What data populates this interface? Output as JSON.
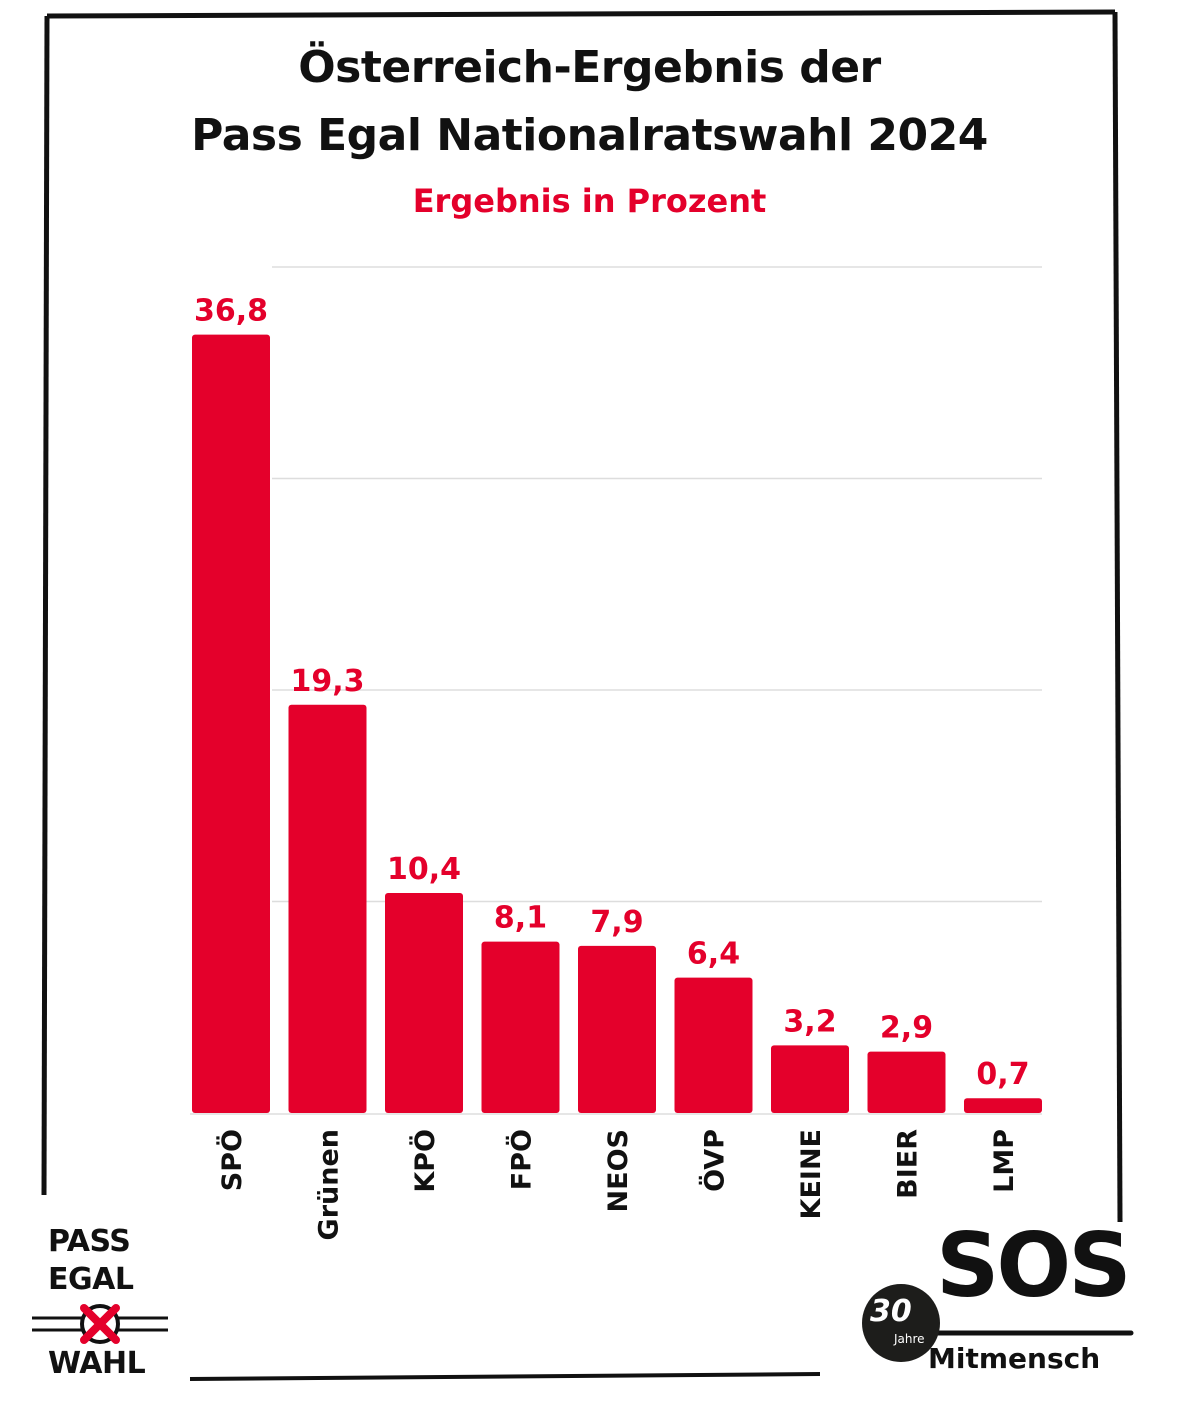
{
  "header": {
    "title_line1": "Österreich-Ergebnis der",
    "title_line2": "Pass Egal Nationalratswahl 2024",
    "subtitle": "Ergebnis in Prozent"
  },
  "colors": {
    "bar": "#e4002b",
    "text": "#111111",
    "grid": "#dddddd"
  },
  "chart_data": {
    "type": "bar",
    "categories": [
      "SPÖ",
      "Grünen",
      "KPÖ",
      "FPÖ",
      "NEOS",
      "ÖVP",
      "KEINE",
      "BIER",
      "LMP"
    ],
    "values": [
      36.8,
      19.3,
      10.4,
      8.1,
      7.9,
      6.4,
      3.2,
      2.9,
      0.7
    ],
    "value_labels": [
      "36,8",
      "19,3",
      "10,4",
      "8,1",
      "7,9",
      "6,4",
      "3,2",
      "2,9",
      "0,7"
    ],
    "title": "Österreich-Ergebnis der Pass Egal Nationalratswahl 2024",
    "subtitle": "Ergebnis in Prozent",
    "ylim": [
      0,
      40
    ],
    "grid": true,
    "category_label_orientation": "vertical"
  },
  "logos": {
    "left": {
      "line1": "PASS",
      "line2": "EGAL",
      "line3": "WAHL",
      "icon": "ballot-cross-icon"
    },
    "right": {
      "main": "SOS",
      "sub": "Mitmensch",
      "badge_number": "30",
      "badge_text": "Jahre"
    }
  }
}
